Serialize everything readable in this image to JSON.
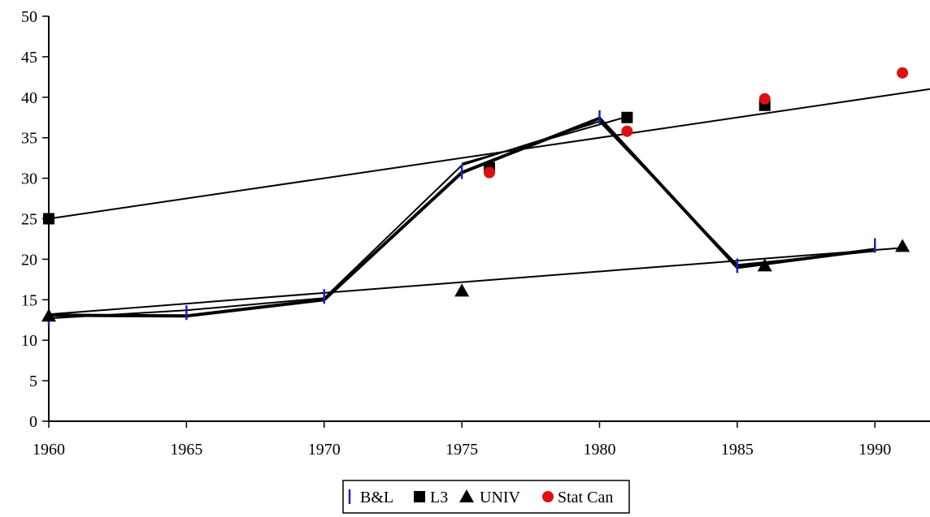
{
  "chart_data": {
    "type": "line",
    "title": "",
    "xlabel": "",
    "ylabel": "",
    "xlim": [
      1960,
      1992
    ],
    "ylim": [
      0,
      50
    ],
    "x_ticks": [
      1960,
      1965,
      1970,
      1975,
      1980,
      1985,
      1990
    ],
    "y_ticks": [
      0,
      5,
      10,
      15,
      20,
      25,
      30,
      35,
      40,
      45,
      50
    ],
    "grid": false,
    "legend_position": "bottom",
    "legend": [
      "B&L",
      "L3",
      "UNIV",
      "Stat Can"
    ],
    "series": [
      {
        "name": "B&L",
        "marker": "vertical-tick",
        "marker_color": "#1f1fbf",
        "points": [
          [
            1960,
            12.7
          ],
          [
            1965,
            13.4
          ],
          [
            1970,
            15.4
          ],
          [
            1975,
            30.8
          ],
          [
            1980,
            37.5
          ],
          [
            1985,
            19.2
          ],
          [
            1990,
            21.7
          ]
        ]
      },
      {
        "name": "L3",
        "marker": "square",
        "marker_color": "#000000",
        "points": [
          [
            1960,
            25.0
          ],
          [
            1976,
            31.3
          ],
          [
            1981,
            37.5
          ],
          [
            1986,
            39.0
          ]
        ]
      },
      {
        "name": "UNIV",
        "marker": "triangle",
        "marker_color": "#000000",
        "points": [
          [
            1960,
            13.0
          ],
          [
            1975,
            16.1
          ],
          [
            1986,
            19.2
          ],
          [
            1991,
            21.6
          ]
        ]
      },
      {
        "name": "Stat Can",
        "marker": "circle",
        "marker_color": "#dd1111",
        "points": [
          [
            1976,
            30.7
          ],
          [
            1981,
            35.8
          ],
          [
            1986,
            39.8
          ],
          [
            1991,
            43.0
          ]
        ]
      }
    ],
    "lines": [
      {
        "width": 2,
        "points": [
          [
            1960,
            25.0
          ],
          [
            1992,
            41.0
          ]
        ]
      },
      {
        "width": 2,
        "points": [
          [
            1960,
            13.2
          ],
          [
            1991,
            21.4
          ]
        ]
      },
      {
        "width": 4,
        "points": [
          [
            1960,
            13.1
          ],
          [
            1965,
            13.0
          ],
          [
            1970,
            15.0
          ],
          [
            1975,
            30.7
          ],
          [
            1980,
            37.4
          ],
          [
            1985,
            19.0
          ],
          [
            1990,
            21.2
          ]
        ]
      },
      {
        "width": 2,
        "points": [
          [
            1960,
            12.7
          ],
          [
            1965,
            13.7
          ],
          [
            1970,
            15.2
          ],
          [
            1975,
            31.6
          ],
          [
            1980,
            37.0
          ],
          [
            1985,
            19.3
          ],
          [
            1990,
            21.0
          ]
        ]
      },
      {
        "width": 2,
        "points": [
          [
            1975,
            31.8
          ],
          [
            1981,
            37.6
          ]
        ]
      }
    ]
  }
}
